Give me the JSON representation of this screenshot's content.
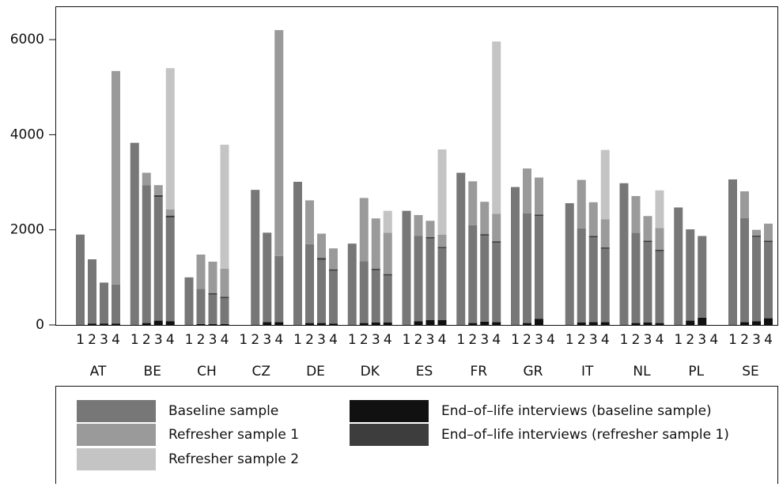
{
  "chart_data": {
    "type": "grouped-stacked-bar",
    "groups": [
      "AT",
      "BE",
      "CH",
      "CZ",
      "DE",
      "DK",
      "ES",
      "FR",
      "GR",
      "IT",
      "NL",
      "PL",
      "SE"
    ],
    "categories": [
      "1",
      "2",
      "3",
      "4"
    ],
    "ylim": [
      0,
      6700
    ],
    "yticks": [
      0,
      2000,
      4000,
      6000
    ],
    "series": [
      {
        "name": "End–of–life interviews (baseline sample)",
        "color": "#111111",
        "values": [
          [
            null,
            30,
            30,
            30
          ],
          [
            null,
            40,
            90,
            80
          ],
          [
            null,
            20,
            20,
            20
          ],
          [
            null,
            null,
            60,
            60
          ],
          [
            null,
            40,
            40,
            30
          ],
          [
            null,
            40,
            50,
            50
          ],
          [
            null,
            80,
            100,
            100
          ],
          [
            null,
            40,
            70,
            60
          ],
          [
            null,
            40,
            130,
            null
          ],
          [
            null,
            50,
            60,
            60
          ],
          [
            null,
            40,
            50,
            40
          ],
          [
            null,
            90,
            150,
            null
          ],
          [
            null,
            60,
            80,
            140
          ]
        ]
      },
      {
        "name": "Baseline sample",
        "color": "#777777",
        "values": [
          [
            1900,
            1350,
            860,
            820
          ],
          [
            3830,
            2900,
            2600,
            2180
          ],
          [
            1000,
            740,
            620,
            540
          ],
          [
            null,
            2840,
            1880,
            1390
          ],
          [
            3010,
            1660,
            1330,
            1110
          ],
          [
            1710,
            1300,
            1100,
            990
          ],
          [
            2400,
            1790,
            1720,
            1510
          ],
          [
            3200,
            2060,
            1810,
            1670
          ],
          [
            2900,
            2310,
            2160,
            null
          ],
          [
            2560,
            1980,
            1780,
            1540
          ],
          [
            2980,
            1900,
            1690,
            1510
          ],
          [
            2470,
            1920,
            1720,
            null
          ],
          [
            3060,
            2190,
            1770,
            1600
          ]
        ]
      },
      {
        "name": "End–of–life interviews (refresher sample 1)",
        "color": "#3d3d3d",
        "values": [
          [
            null,
            null,
            null,
            null
          ],
          [
            null,
            null,
            40,
            40
          ],
          [
            null,
            null,
            30,
            30
          ],
          [
            null,
            null,
            null,
            null
          ],
          [
            null,
            null,
            40,
            30
          ],
          [
            null,
            null,
            30,
            30
          ],
          [
            null,
            null,
            30,
            30
          ],
          [
            null,
            null,
            30,
            30
          ],
          [
            null,
            null,
            30,
            null
          ],
          [
            null,
            null,
            30,
            30
          ],
          [
            null,
            null,
            30,
            30
          ],
          [
            null,
            null,
            null,
            null
          ],
          [
            null,
            null,
            30,
            30
          ]
        ]
      },
      {
        "name": "Refresher sample 1",
        "color": "#9a9a9a",
        "values": [
          [
            null,
            null,
            null,
            4490
          ],
          [
            null,
            260,
            210,
            130
          ],
          [
            null,
            720,
            660,
            590
          ],
          [
            null,
            null,
            null,
            4750
          ],
          [
            null,
            920,
            510,
            440
          ],
          [
            null,
            1330,
            1060,
            870
          ],
          [
            null,
            440,
            340,
            260
          ],
          [
            null,
            920,
            680,
            580
          ],
          [
            null,
            940,
            780,
            null
          ],
          [
            null,
            1020,
            710,
            590
          ],
          [
            null,
            770,
            520,
            460
          ],
          [
            null,
            null,
            null,
            null
          ],
          [
            null,
            560,
            120,
            360
          ]
        ]
      },
      {
        "name": "Refresher sample 2",
        "color": "#c4c4c4",
        "values": [
          [
            null,
            null,
            null,
            null
          ],
          [
            null,
            null,
            null,
            2970
          ],
          [
            null,
            null,
            null,
            2610
          ],
          [
            null,
            null,
            null,
            null
          ],
          [
            null,
            null,
            null,
            null
          ],
          [
            null,
            null,
            null,
            460
          ],
          [
            null,
            null,
            null,
            1790
          ],
          [
            null,
            null,
            null,
            3620
          ],
          [
            null,
            null,
            null,
            null
          ],
          [
            null,
            null,
            null,
            1460
          ],
          [
            null,
            null,
            null,
            790
          ],
          [
            null,
            null,
            null,
            null
          ],
          [
            null,
            null,
            null,
            null
          ]
        ]
      }
    ],
    "legend_order": [
      1,
      3,
      4,
      0,
      2
    ]
  }
}
